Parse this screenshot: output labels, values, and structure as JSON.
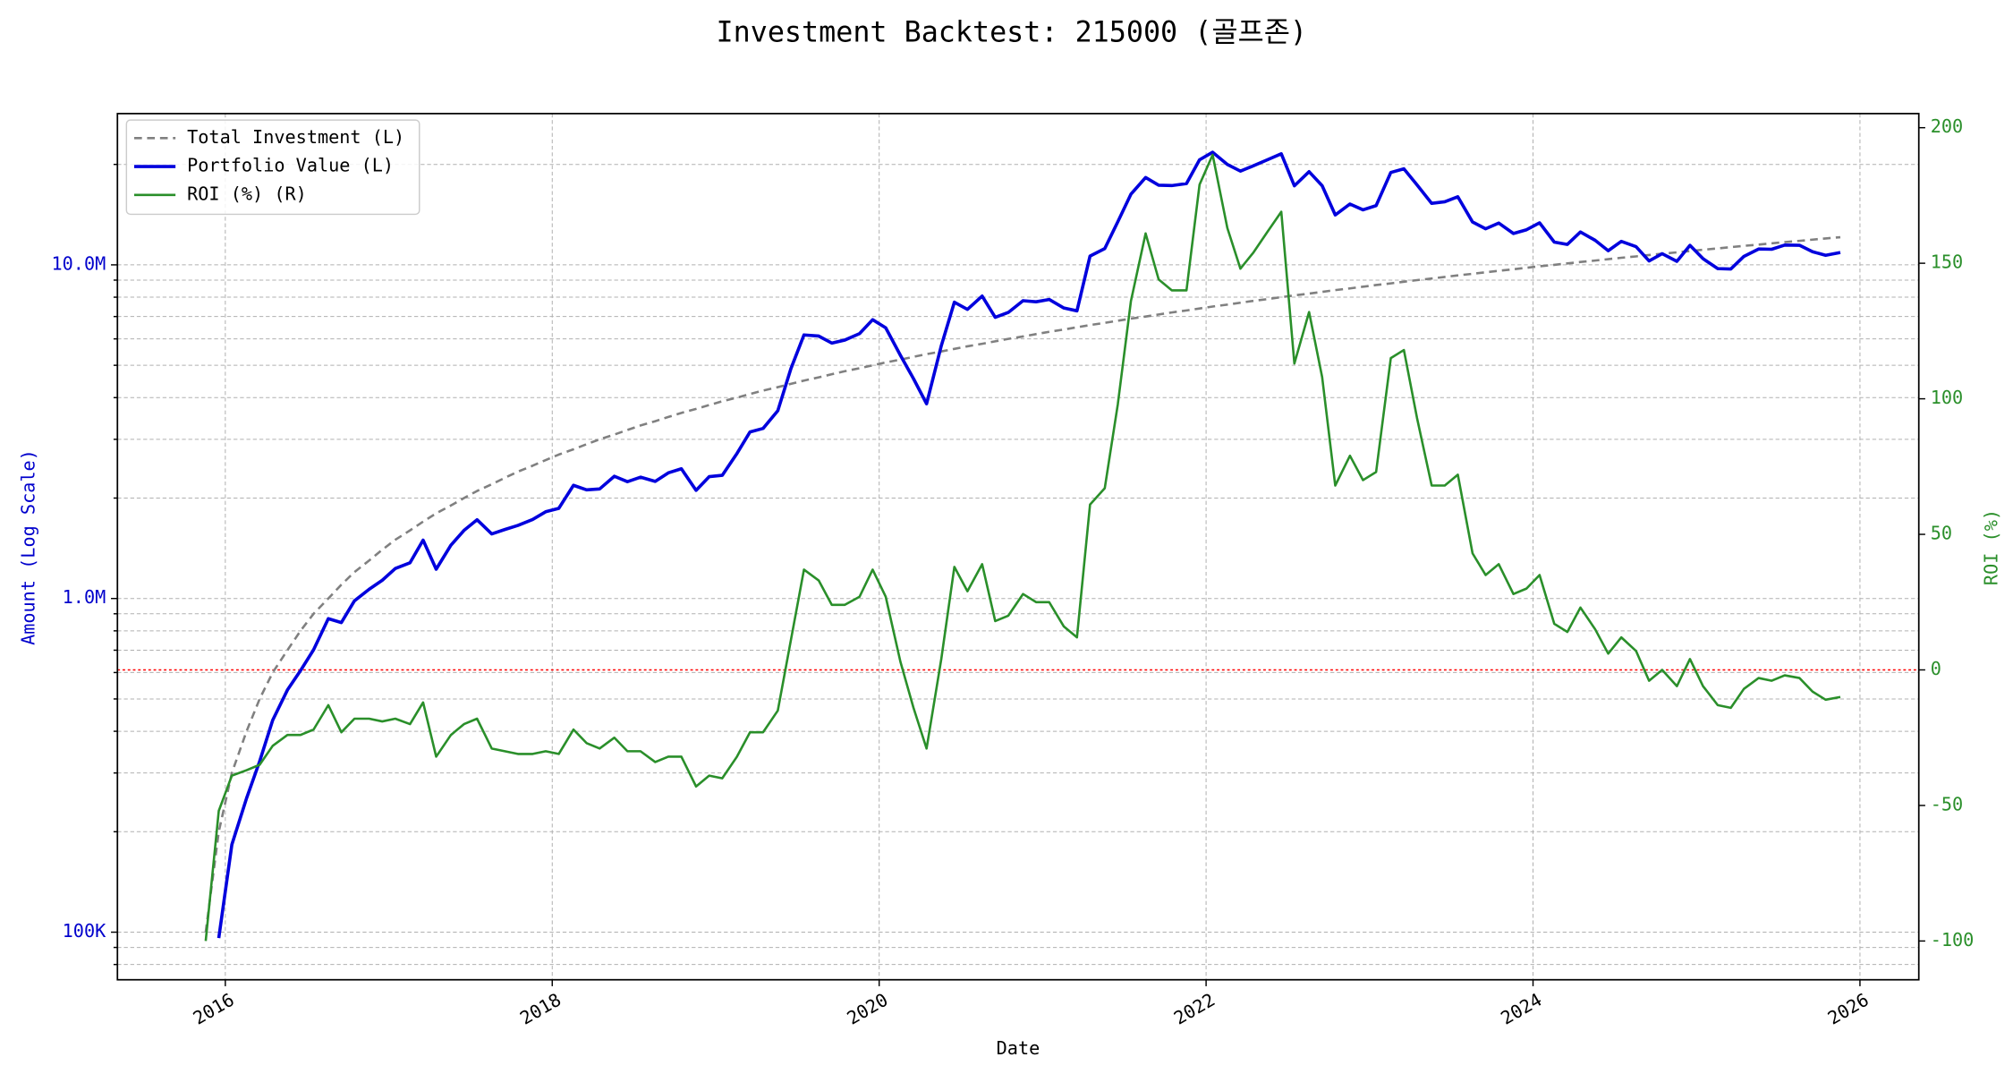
{
  "chart_data": {
    "type": "line",
    "title": "Investment Backtest: 215000 (골프존)",
    "xlabel": "Date",
    "ylabel": "Amount (Log Scale)",
    "y2label": "ROI (%)",
    "ylabel_color": "#0000cc",
    "y2label_color": "#2a8f2a",
    "yscale": "log",
    "grid": true,
    "legend": "upper left",
    "xlim": [
      2015.34,
      2026.36
    ],
    "xticks": [
      2016,
      2018,
      2020,
      2022,
      2024,
      2026
    ],
    "ylim": [
      72000,
      28400000
    ],
    "yticks": [
      {
        "value": 100000,
        "label": "100K"
      },
      {
        "value": 1000000,
        "label": "1.0M"
      },
      {
        "value": 10000000,
        "label": "10.0M"
      }
    ],
    "minor_yticks": [
      80000,
      90000,
      200000,
      300000,
      400000,
      500000,
      600000,
      700000,
      800000,
      900000,
      2000000,
      3000000,
      4000000,
      5000000,
      6000000,
      7000000,
      8000000,
      9000000,
      20000000
    ],
    "y2lim": [
      -114.3,
      205.2
    ],
    "y2ticks": [
      -100,
      -50,
      0,
      50,
      100,
      150,
      200
    ],
    "reference_line": {
      "axis": "y2",
      "value": 0,
      "color": "#ff0000"
    },
    "x": [
      2015.88,
      2015.96,
      2016.04,
      2016.13,
      2016.21,
      2016.29,
      2016.38,
      2016.46,
      2016.54,
      2016.63,
      2016.71,
      2016.79,
      2016.88,
      2016.96,
      2017.04,
      2017.13,
      2017.21,
      2017.29,
      2017.38,
      2017.46,
      2017.54,
      2017.63,
      2017.71,
      2017.79,
      2017.88,
      2017.96,
      2018.04,
      2018.13,
      2018.21,
      2018.29,
      2018.38,
      2018.46,
      2018.54,
      2018.63,
      2018.71,
      2018.79,
      2018.88,
      2018.96,
      2019.04,
      2019.13,
      2019.21,
      2019.29,
      2019.38,
      2019.46,
      2019.54,
      2019.63,
      2019.71,
      2019.79,
      2019.88,
      2019.96,
      2020.04,
      2020.13,
      2020.21,
      2020.29,
      2020.38,
      2020.46,
      2020.54,
      2020.63,
      2020.71,
      2020.79,
      2020.88,
      2020.96,
      2021.04,
      2021.13,
      2021.21,
      2021.29,
      2021.38,
      2021.46,
      2021.54,
      2021.63,
      2021.71,
      2021.79,
      2021.88,
      2021.96,
      2022.04,
      2022.13,
      2022.21,
      2022.29,
      2022.38,
      2022.46,
      2022.54,
      2022.63,
      2022.71,
      2022.79,
      2022.88,
      2022.96,
      2023.04,
      2023.13,
      2023.21,
      2023.29,
      2023.38,
      2023.46,
      2023.54,
      2023.63,
      2023.71,
      2023.79,
      2023.88,
      2023.96,
      2024.04,
      2024.13,
      2024.21,
      2024.29,
      2024.38,
      2024.46,
      2024.54,
      2024.63,
      2024.71,
      2024.79,
      2024.88,
      2024.96,
      2025.04,
      2025.13,
      2025.21,
      2025.29,
      2025.38,
      2025.46,
      2025.54,
      2025.63,
      2025.71,
      2025.79,
      2025.88
    ],
    "series": [
      {
        "name": "Total Investment (L)",
        "color": "#808080",
        "dash": true,
        "axis": "y",
        "values": [
          100000,
          200000,
          300000,
          400000,
          500000,
          600000,
          700000,
          800000,
          900000,
          1000000,
          1100000,
          1200000,
          1300000,
          1400000,
          1500000,
          1600000,
          1700000,
          1800000,
          1900000,
          2000000,
          2100000,
          2200000,
          2300000,
          2400000,
          2500000,
          2600000,
          2700000,
          2800000,
          2900000,
          3000000,
          3100000,
          3200000,
          3300000,
          3400000,
          3500000,
          3600000,
          3700000,
          3800000,
          3900000,
          4000000,
          4100000,
          4200000,
          4300000,
          4400000,
          4500000,
          4600000,
          4700000,
          4800000,
          4900000,
          5000000,
          5100000,
          5200000,
          5300000,
          5400000,
          5500000,
          5600000,
          5700000,
          5800000,
          5900000,
          6000000,
          6100000,
          6200000,
          6300000,
          6400000,
          6500000,
          6600000,
          6700000,
          6800000,
          6900000,
          7000000,
          7100000,
          7200000,
          7300000,
          7400000,
          7500000,
          7600000,
          7700000,
          7800000,
          7900000,
          8000000,
          8100000,
          8200000,
          8300000,
          8400000,
          8500000,
          8600000,
          8700000,
          8800000,
          8900000,
          9000000,
          9100000,
          9200000,
          9300000,
          9400000,
          9500000,
          9600000,
          9700000,
          9800000,
          9900000,
          10000000,
          10100000,
          10200000,
          10300000,
          10400000,
          10500000,
          10600000,
          10700000,
          10800000,
          10900000,
          11000000,
          11100000,
          11200000,
          11300000,
          11400000,
          11500000,
          11600000,
          11700000,
          11800000,
          11900000,
          12000000,
          12100000
        ]
      },
      {
        "name": "Portfolio Value (L)",
        "color": "#0000dd",
        "width": 2.5,
        "axis": "y",
        "values": [
          null,
          96000,
          183000,
          252000,
          325000,
          432000,
          532000,
          608000,
          702000,
          870000,
          847000,
          984000,
          1066000,
          1134000,
          1230000,
          1280000,
          1496000,
          1224000,
          1444000,
          1600000,
          1722000,
          1562000,
          1610000,
          1656000,
          1725000,
          1820000,
          1863000,
          2184000,
          2117000,
          2130000,
          2325000,
          2240000,
          2310000,
          2244000,
          2380000,
          2448000,
          2109000,
          2318000,
          2340000,
          2720000,
          3157000,
          3234000,
          3655000,
          4884000,
          6165000,
          6118000,
          5828000,
          5952000,
          6223000,
          6850000,
          6477000,
          5356000,
          4558000,
          3834000,
          5720000,
          7728000,
          7353000,
          8062000,
          6962000,
          7200000,
          7808000,
          7750000,
          7875000,
          7424000,
          7280000,
          10626000,
          11189000,
          13464000,
          16284000,
          18270000,
          17324000,
          17280000,
          17520000,
          20646000,
          21750000,
          19988000,
          19096000,
          19812000,
          20698000,
          21520000,
          17253000,
          19024000,
          17264000,
          14112000,
          15215000,
          14620000,
          15051000,
          18920000,
          19402000,
          17370000,
          15288000,
          15456000,
          15996000,
          13442000,
          12825000,
          13344000,
          12416000,
          12740000,
          13365000,
          11700000,
          11514000,
          12546000,
          11845000,
          11024000,
          11760000,
          11342000,
          10272000,
          10800000,
          10246000,
          11440000,
          10434000,
          9744000,
          9718000,
          10602000,
          11155000,
          11136000,
          11466000,
          11446000,
          10948000,
          10680000,
          10890000
        ]
      },
      {
        "name": "ROI (%) (R)",
        "color": "#2a8f2a",
        "width": 1.8,
        "axis": "y2",
        "values": [
          -100,
          -52,
          -39,
          -37,
          -35,
          -28,
          -24,
          -24,
          -22,
          -13,
          -23,
          -18,
          -18,
          -19,
          -18,
          -20,
          -12,
          -32,
          -24,
          -20,
          -18,
          -29,
          -30,
          -31,
          -31,
          -30,
          -31,
          -22,
          -27,
          -29,
          -25,
          -30,
          -30,
          -34,
          -32,
          -32,
          -43,
          -39,
          -40,
          -32,
          -23,
          -23,
          -15,
          11,
          37,
          33,
          24,
          24,
          27,
          37,
          27,
          3,
          -14,
          -29,
          4,
          38,
          29,
          39,
          18,
          20,
          28,
          25,
          25,
          16,
          12,
          61,
          67,
          98,
          136,
          161,
          144,
          140,
          140,
          179,
          190,
          163,
          148,
          154,
          162,
          169,
          113,
          132,
          108,
          68,
          79,
          70,
          73,
          115,
          118,
          93,
          68,
          68,
          72,
          43,
          35,
          39,
          28,
          30,
          35,
          17,
          14,
          23,
          15,
          6,
          12,
          7,
          -4,
          0,
          -6,
          4,
          -6,
          -13,
          -14,
          -7,
          -3,
          -4,
          -2,
          -3,
          -8,
          -11,
          -10
        ]
      }
    ]
  }
}
